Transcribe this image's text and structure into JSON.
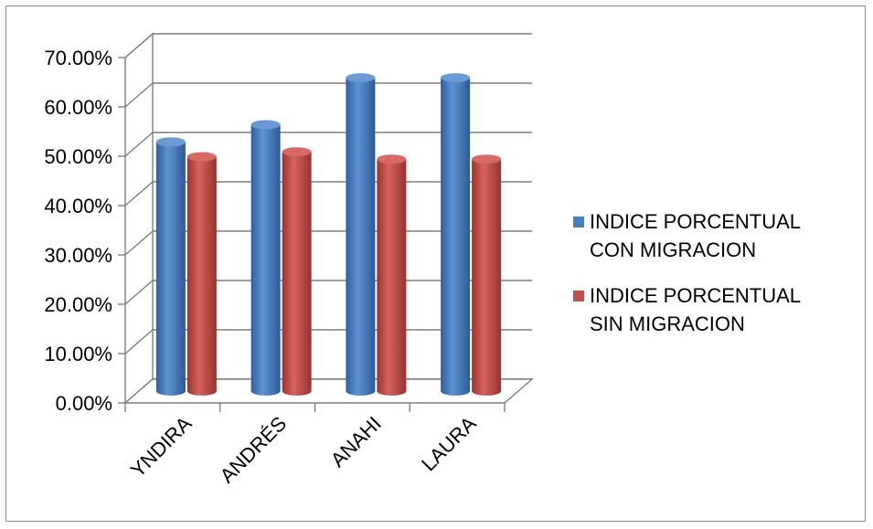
{
  "chart_data": {
    "type": "bar",
    "style": "3d-cylinder",
    "categories": [
      "YNDIRA",
      "ANDRÉS",
      "ANAHI",
      "LAURA"
    ],
    "series": [
      {
        "name": "INDICE PORCENTUAL CON MIGRACION",
        "values": [
          0.505,
          0.54,
          0.635,
          0.635
        ],
        "color": "#4a7ebf"
      },
      {
        "name": "INDICE PORCENTUAL SIN MIGRACION",
        "values": [
          0.475,
          0.485,
          0.47,
          0.47
        ],
        "color": "#c0504d"
      }
    ],
    "ylim": [
      0,
      0.7
    ],
    "yticks": [
      0,
      0.1,
      0.2,
      0.3,
      0.4,
      0.5,
      0.6,
      0.7
    ],
    "ytick_labels": [
      "0.00%",
      "10.00%",
      "20.00%",
      "30.00%",
      "40.00%",
      "50.00%",
      "60.00%",
      "70.00%"
    ],
    "grid": true,
    "legend": {
      "position": "right",
      "entries": [
        [
          "INDICE PORCENTUAL",
          "CON MIGRACION"
        ],
        [
          "INDICE PORCENTUAL",
          "SIN MIGRACION"
        ]
      ]
    }
  }
}
